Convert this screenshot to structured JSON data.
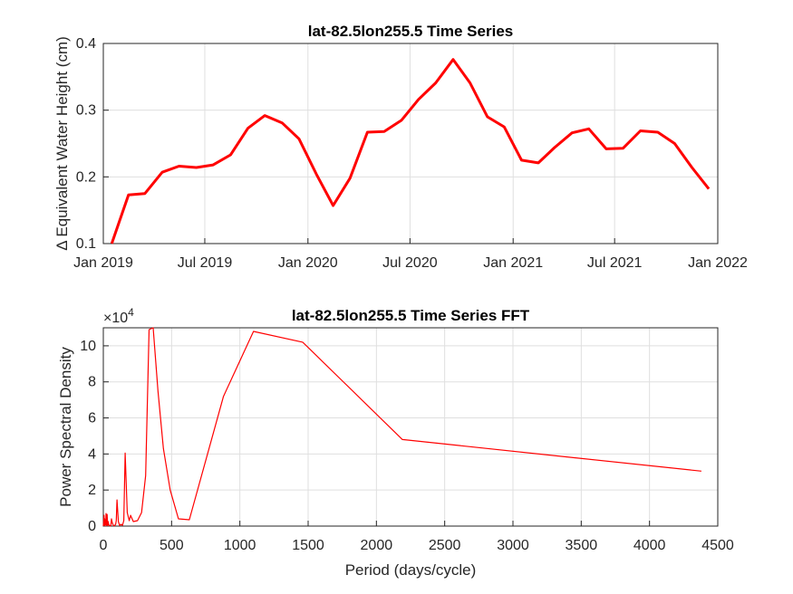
{
  "chart_data": [
    {
      "type": "line",
      "title": "lat-82.5lon255.5 Time Series",
      "xlabel": "",
      "ylabel": "Δ Equivalent Water Height (cm)",
      "x_ticks": [
        "Jan 2019",
        "Jul 2019",
        "Jan 2020",
        "Jul 2020",
        "Jan 2021",
        "Jul 2021",
        "Jan 2022"
      ],
      "xlim": [
        "2019-01-01",
        "2022-01-01"
      ],
      "ylim": [
        0.1,
        0.4
      ],
      "y_ticks": [
        0.1,
        0.2,
        0.3,
        0.4
      ],
      "grid": true,
      "color": "#ff0000",
      "series": [
        {
          "x": [
            "2019-01-16",
            "2019-02-15",
            "2019-03-16",
            "2019-04-16",
            "2019-05-16",
            "2019-06-16",
            "2019-07-16",
            "2019-08-16",
            "2019-09-16",
            "2019-10-16",
            "2019-11-16",
            "2019-12-16",
            "2020-01-16",
            "2020-02-15",
            "2020-03-16",
            "2020-04-16",
            "2020-05-16",
            "2020-06-16",
            "2020-07-16",
            "2020-08-16",
            "2020-09-16",
            "2020-10-16",
            "2020-11-16",
            "2020-12-16",
            "2021-01-16",
            "2021-02-15",
            "2021-03-16",
            "2021-04-16",
            "2021-05-16",
            "2021-06-16",
            "2021-07-16",
            "2021-08-16",
            "2021-09-16",
            "2021-10-16",
            "2021-11-16",
            "2021-12-16"
          ],
          "y": [
            0.1,
            0.173,
            0.175,
            0.207,
            0.216,
            0.214,
            0.218,
            0.233,
            0.273,
            0.292,
            0.281,
            0.257,
            0.204,
            0.157,
            0.198,
            0.267,
            0.268,
            0.285,
            0.316,
            0.341,
            0.376,
            0.341,
            0.29,
            0.275,
            0.225,
            0.221,
            0.244,
            0.266,
            0.272,
            0.242,
            0.243,
            0.269,
            0.267,
            0.25,
            0.214,
            0.182
          ]
        }
      ]
    },
    {
      "type": "line",
      "title": "lat-82.5lon255.5 Time Series FFT",
      "xlabel": "Period (days/cycle)",
      "ylabel": "Power Spectral Density",
      "y_exponent_label": "×10",
      "y_exponent": "4",
      "xlim": [
        0,
        4500
      ],
      "ylim": [
        0,
        110000
      ],
      "x_ticks": [
        0,
        500,
        1000,
        1500,
        2000,
        2500,
        3000,
        3500,
        4000,
        4500
      ],
      "y_ticks": [
        0,
        2,
        4,
        6,
        8,
        10
      ],
      "grid": true,
      "color": "#ff0000",
      "series": [
        {
          "x": [
            0,
            5,
            8,
            10,
            12,
            15,
            18,
            20,
            22,
            25,
            28,
            32,
            36,
            40,
            45,
            50,
            55,
            60,
            65,
            70,
            75,
            80,
            85,
            90,
            95,
            100,
            110,
            120,
            130,
            140,
            150,
            160,
            175,
            190,
            200,
            220,
            250,
            280,
            310,
            335,
            365,
            400,
            440,
            490,
            550,
            630,
            880,
            1100,
            1460,
            2190,
            4380
          ],
          "y": [
            0,
            6000,
            500,
            4000,
            200,
            3500,
            800,
            7000,
            1500,
            200,
            6500,
            300,
            2500,
            800,
            300,
            100,
            300,
            4000,
            2000,
            1000,
            300,
            200,
            500,
            1000,
            3000,
            14500,
            2500,
            300,
            1000,
            400,
            3000,
            40500,
            7500,
            3000,
            6000,
            2500,
            3000,
            7500,
            28000,
            109000,
            111000,
            75000,
            43000,
            20000,
            4000,
            3500,
            72000,
            108000,
            102000,
            48000,
            30500
          ]
        }
      ]
    }
  ]
}
